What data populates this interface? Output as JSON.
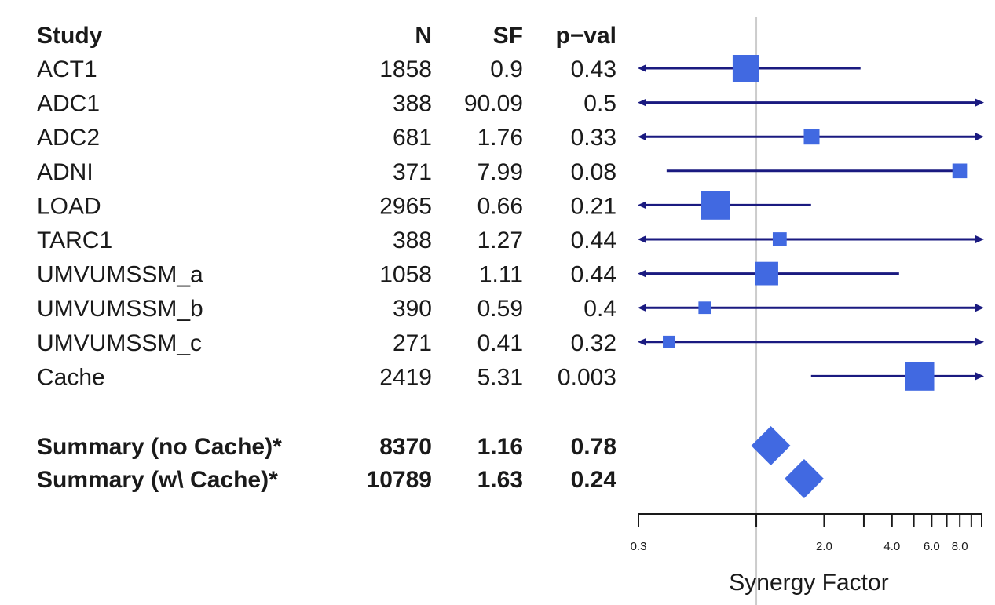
{
  "chart_data": {
    "type": "forest",
    "headers": {
      "study": "Study",
      "n": "N",
      "sf": "SF",
      "pval": "p−val"
    },
    "studies": [
      {
        "name": "ACT1",
        "n": "1858",
        "sf": "0.9",
        "pval": "0.43",
        "estimate": 0.9,
        "ci_low": null,
        "ci_high": 2.9,
        "arrow_low": true,
        "arrow_high": false,
        "weight": 1.0
      },
      {
        "name": "ADC1",
        "n": "388",
        "sf": "90.09",
        "pval": "0.5",
        "estimate": null,
        "ci_low": null,
        "ci_high": null,
        "arrow_low": true,
        "arrow_high": true,
        "weight": 0.0
      },
      {
        "name": "ADC2",
        "n": "681",
        "sf": "1.76",
        "pval": "0.33",
        "estimate": 1.76,
        "ci_low": null,
        "ci_high": null,
        "arrow_low": true,
        "arrow_high": true,
        "weight": 0.5
      },
      {
        "name": "ADNI",
        "n": "371",
        "sf": "7.99",
        "pval": "0.08",
        "estimate": 7.99,
        "ci_low": 0.4,
        "ci_high": 8.0,
        "arrow_low": false,
        "arrow_high": false,
        "weight": 0.45
      },
      {
        "name": "LOAD",
        "n": "2965",
        "sf": "0.66",
        "pval": "0.21",
        "estimate": 0.66,
        "ci_low": null,
        "ci_high": 1.75,
        "arrow_low": true,
        "arrow_high": false,
        "weight": 1.1
      },
      {
        "name": "TARC1",
        "n": "388",
        "sf": "1.27",
        "pval": "0.44",
        "estimate": 1.27,
        "ci_low": null,
        "ci_high": null,
        "arrow_low": true,
        "arrow_high": true,
        "weight": 0.42
      },
      {
        "name": "UMVUMSSM_a",
        "n": "1058",
        "sf": "1.11",
        "pval": "0.44",
        "estimate": 1.11,
        "ci_low": null,
        "ci_high": 4.3,
        "arrow_low": true,
        "arrow_high": false,
        "weight": 0.85
      },
      {
        "name": "UMVUMSSM_b",
        "n": "390",
        "sf": "0.59",
        "pval": "0.4",
        "estimate": 0.59,
        "ci_low": null,
        "ci_high": null,
        "arrow_low": true,
        "arrow_high": true,
        "weight": 0.35
      },
      {
        "name": "UMVUMSSM_c",
        "n": "271",
        "sf": "0.41",
        "pval": "0.32",
        "estimate": 0.41,
        "ci_low": null,
        "ci_high": null,
        "arrow_low": true,
        "arrow_high": true,
        "weight": 0.35
      },
      {
        "name": "Cache",
        "n": "2419",
        "sf": "5.31",
        "pval": "0.003",
        "estimate": 5.31,
        "ci_low": 1.75,
        "ci_high": null,
        "arrow_low": false,
        "arrow_high": true,
        "weight": 1.1
      }
    ],
    "summaries": [
      {
        "name": "Summary (no Cache)*",
        "n": "8370",
        "sf": "1.16",
        "pval": "0.78",
        "estimate": 1.16
      },
      {
        "name": "Summary (w\\ Cache)*",
        "n": "10789",
        "sf": "1.63",
        "pval": "0.24",
        "estimate": 1.63
      }
    ],
    "xaxis": {
      "scale": "log",
      "title": "Synergy Factor",
      "range": [
        0.3,
        10.0
      ],
      "reference_line": 1.0,
      "labeled_ticks": [
        {
          "value": 0.3,
          "label": "0.3"
        },
        {
          "value": 2.0,
          "label": "2.0"
        },
        {
          "value": 4.0,
          "label": "4.0"
        },
        {
          "value": 6.0,
          "label": "6.0"
        },
        {
          "value": 8.0,
          "label": "8.0"
        }
      ],
      "minor_ticks": [
        1.0,
        3.0,
        5.0,
        7.0,
        9.0,
        10.0
      ]
    },
    "colors": {
      "marker": "#4169e1",
      "line": "#1a1a80",
      "reference": "#cccccc",
      "text": "#1a1a1a"
    }
  }
}
